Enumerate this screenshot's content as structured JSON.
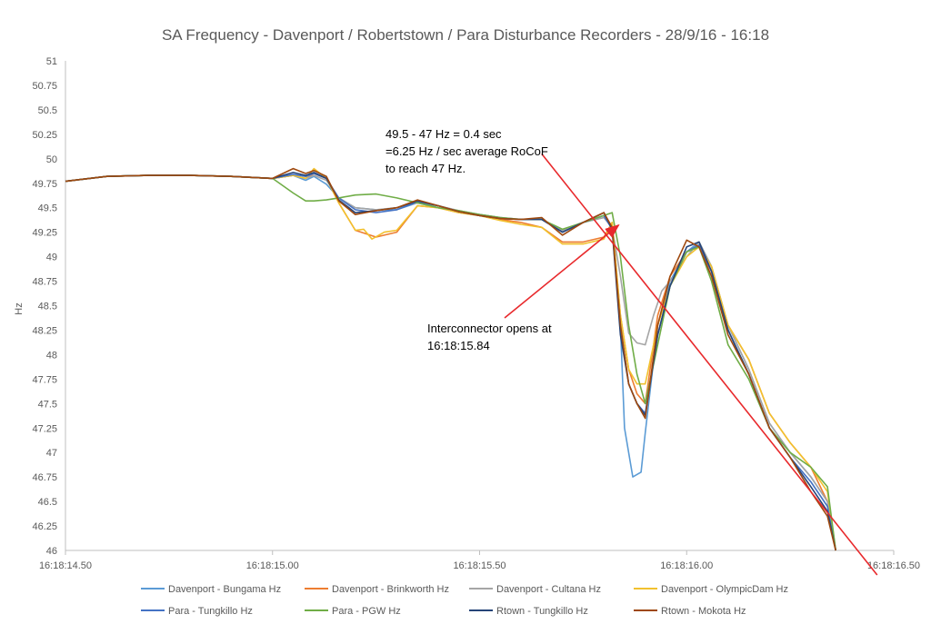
{
  "chart_data": {
    "type": "line",
    "title": "SA Frequency - Davenport / Robertstown  / Para Disturbance Recorders - 28/9/16 - 16:18",
    "xlabel": "",
    "ylabel": "Hz",
    "xlim": [
      14.5,
      16.5
    ],
    "ylim": [
      46,
      51
    ],
    "x_ticks": [
      14.5,
      15.0,
      15.5,
      16.0,
      16.5
    ],
    "x_tick_labels": [
      "16:18:14.50",
      "16:18:15.00",
      "16:18:15.50",
      "16:18:16.00",
      "16:18:16.50"
    ],
    "y_ticks": [
      46,
      46.25,
      46.5,
      46.75,
      47,
      47.25,
      47.5,
      47.75,
      48,
      48.25,
      48.5,
      48.75,
      49,
      49.25,
      49.5,
      49.75,
      50,
      50.25,
      50.5,
      50.75,
      51
    ],
    "y_tick_labels": [
      "46",
      "46.25",
      "46.5",
      "46.75",
      "47",
      "47.25",
      "47.5",
      "47.75",
      "48",
      "48.25",
      "48.5",
      "48.75",
      "49",
      "49.25",
      "49.5",
      "49.75",
      "50",
      "50.25",
      "50.5",
      "50.75",
      "51"
    ],
    "grid": false,
    "legend_position": "bottom",
    "series": [
      {
        "name": "Davenport - Bungama Hz",
        "color": "#5B9BD5",
        "x": [
          14.5,
          14.6,
          14.7,
          14.8,
          14.9,
          15.0,
          15.05,
          15.08,
          15.1,
          15.13,
          15.16,
          15.2,
          15.25,
          15.3,
          15.35,
          15.4,
          15.45,
          15.5,
          15.55,
          15.6,
          15.65,
          15.7,
          15.75,
          15.8,
          15.82,
          15.84,
          15.85,
          15.87,
          15.89,
          15.9,
          15.93,
          15.96,
          16.0,
          16.03,
          16.06,
          16.1,
          16.15,
          16.2,
          16.25,
          16.3,
          16.34,
          16.36
        ],
        "y": [
          49.77,
          49.82,
          49.83,
          49.83,
          49.82,
          49.8,
          49.83,
          49.78,
          49.82,
          49.74,
          49.6,
          49.5,
          49.48,
          49.48,
          49.55,
          49.5,
          49.46,
          49.43,
          49.4,
          49.38,
          49.38,
          49.27,
          49.35,
          49.4,
          49.3,
          48.3,
          47.25,
          46.75,
          46.8,
          47.2,
          48.3,
          48.75,
          49.05,
          49.15,
          48.9,
          48.3,
          47.85,
          47.3,
          47.0,
          46.75,
          46.5,
          46.0
        ]
      },
      {
        "name": "Davenport - Brinkworth Hz",
        "color": "#ED7D31",
        "x": [
          14.5,
          14.6,
          14.7,
          14.8,
          14.9,
          15.0,
          15.05,
          15.08,
          15.1,
          15.13,
          15.16,
          15.2,
          15.25,
          15.3,
          15.35,
          15.4,
          15.45,
          15.5,
          15.55,
          15.6,
          15.65,
          15.7,
          15.75,
          15.8,
          15.82,
          15.84,
          15.86,
          15.88,
          15.9,
          15.93,
          15.96,
          16.0,
          16.03,
          16.06,
          16.1,
          16.15,
          16.2,
          16.25,
          16.3,
          16.34,
          16.36
        ],
        "y": [
          49.77,
          49.82,
          49.83,
          49.83,
          49.82,
          49.8,
          49.83,
          49.8,
          49.85,
          49.8,
          49.55,
          49.27,
          49.2,
          49.25,
          49.52,
          49.5,
          49.45,
          49.42,
          49.38,
          49.35,
          49.3,
          49.15,
          49.15,
          49.2,
          49.35,
          48.4,
          47.85,
          47.6,
          47.5,
          48.4,
          48.8,
          49.05,
          49.1,
          48.85,
          48.3,
          47.95,
          47.4,
          47.1,
          46.85,
          46.5,
          46.0
        ]
      },
      {
        "name": "Davenport - Cultana Hz",
        "color": "#A5A5A5",
        "x": [
          14.5,
          14.6,
          14.7,
          14.8,
          14.9,
          15.0,
          15.05,
          15.08,
          15.1,
          15.13,
          15.16,
          15.2,
          15.25,
          15.3,
          15.35,
          15.4,
          15.45,
          15.5,
          15.55,
          15.6,
          15.65,
          15.7,
          15.75,
          15.8,
          15.82,
          15.84,
          15.86,
          15.88,
          15.9,
          15.92,
          15.94,
          15.97,
          16.0,
          16.03,
          16.06,
          16.1,
          16.15,
          16.2,
          16.25,
          16.3,
          16.34,
          16.36
        ],
        "y": [
          49.77,
          49.82,
          49.83,
          49.83,
          49.82,
          49.8,
          49.83,
          49.8,
          49.83,
          49.78,
          49.6,
          49.5,
          49.48,
          49.5,
          49.55,
          49.52,
          49.47,
          49.43,
          49.4,
          49.38,
          49.38,
          49.27,
          49.35,
          49.4,
          49.3,
          48.8,
          48.22,
          48.12,
          48.1,
          48.4,
          48.65,
          48.8,
          49.0,
          49.15,
          48.9,
          48.3,
          47.85,
          47.3,
          47.0,
          46.75,
          46.5,
          46.0
        ]
      },
      {
        "name": "Davenport - OlympicDam Hz",
        "color": "#F2C12E",
        "x": [
          14.5,
          14.6,
          14.7,
          14.8,
          14.9,
          15.0,
          15.05,
          15.08,
          15.1,
          15.13,
          15.16,
          15.2,
          15.22,
          15.24,
          15.27,
          15.3,
          15.35,
          15.4,
          15.45,
          15.5,
          15.55,
          15.6,
          15.65,
          15.7,
          15.75,
          15.8,
          15.82,
          15.84,
          15.86,
          15.88,
          15.9,
          15.93,
          15.96,
          16.0,
          16.03,
          16.06,
          16.1,
          16.15,
          16.2,
          16.25,
          16.3,
          16.34,
          16.36
        ],
        "y": [
          49.77,
          49.82,
          49.83,
          49.83,
          49.82,
          49.8,
          49.83,
          49.8,
          49.9,
          49.8,
          49.55,
          49.27,
          49.28,
          49.18,
          49.25,
          49.27,
          49.52,
          49.5,
          49.45,
          49.42,
          49.37,
          49.33,
          49.3,
          49.13,
          49.13,
          49.18,
          49.35,
          48.4,
          47.85,
          47.7,
          47.7,
          48.3,
          48.7,
          49.0,
          49.1,
          48.9,
          48.3,
          47.95,
          47.4,
          47.1,
          46.85,
          46.6,
          46.0
        ]
      },
      {
        "name": "Para - Tungkillo Hz",
        "color": "#4472C4",
        "x": [
          14.5,
          14.6,
          14.7,
          14.8,
          14.9,
          15.0,
          15.05,
          15.08,
          15.1,
          15.13,
          15.16,
          15.2,
          15.25,
          15.3,
          15.35,
          15.4,
          15.45,
          15.5,
          15.55,
          15.6,
          15.65,
          15.7,
          15.75,
          15.8,
          15.82,
          15.84,
          15.86,
          15.88,
          15.9,
          15.93,
          15.96,
          16.0,
          16.03,
          16.06,
          16.1,
          16.15,
          16.2,
          16.25,
          16.3,
          16.34,
          16.36
        ],
        "y": [
          49.77,
          49.82,
          49.83,
          49.83,
          49.82,
          49.8,
          49.84,
          49.82,
          49.85,
          49.8,
          49.6,
          49.48,
          49.45,
          49.48,
          49.56,
          49.52,
          49.46,
          49.42,
          49.39,
          49.38,
          49.38,
          49.25,
          49.35,
          49.42,
          49.28,
          48.3,
          47.7,
          47.5,
          47.4,
          48.2,
          48.7,
          49.05,
          49.12,
          48.85,
          48.25,
          47.8,
          47.25,
          46.95,
          46.7,
          46.45,
          46.0
        ]
      },
      {
        "name": "Para - PGW Hz",
        "color": "#70AD47",
        "x": [
          14.5,
          14.6,
          14.7,
          14.8,
          14.9,
          15.0,
          15.05,
          15.08,
          15.1,
          15.13,
          15.16,
          15.2,
          15.25,
          15.3,
          15.35,
          15.4,
          15.45,
          15.5,
          15.55,
          15.6,
          15.65,
          15.7,
          15.75,
          15.8,
          15.82,
          15.84,
          15.86,
          15.88,
          15.9,
          15.93,
          15.96,
          16.0,
          16.03,
          16.06,
          16.1,
          16.15,
          16.2,
          16.25,
          16.3,
          16.34,
          16.36
        ],
        "y": [
          49.77,
          49.82,
          49.83,
          49.83,
          49.82,
          49.8,
          49.65,
          49.57,
          49.57,
          49.58,
          49.6,
          49.63,
          49.64,
          49.6,
          49.55,
          49.5,
          49.47,
          49.43,
          49.4,
          49.38,
          49.38,
          49.28,
          49.35,
          49.42,
          49.45,
          49.0,
          48.3,
          47.8,
          47.5,
          48.1,
          48.7,
          49.05,
          49.1,
          48.75,
          48.1,
          47.75,
          47.25,
          47.0,
          46.85,
          46.65,
          46.0
        ]
      },
      {
        "name": "Rtown - Tungkillo Hz",
        "color": "#264478",
        "x": [
          14.5,
          14.6,
          14.7,
          14.8,
          14.9,
          15.0,
          15.05,
          15.08,
          15.1,
          15.13,
          15.16,
          15.2,
          15.25,
          15.3,
          15.35,
          15.4,
          15.45,
          15.5,
          15.55,
          15.6,
          15.65,
          15.7,
          15.75,
          15.8,
          15.82,
          15.84,
          15.86,
          15.88,
          15.9,
          15.93,
          15.96,
          16.0,
          16.03,
          16.06,
          16.1,
          16.15,
          16.2,
          16.25,
          16.3,
          16.34,
          16.36
        ],
        "y": [
          49.77,
          49.82,
          49.83,
          49.83,
          49.82,
          49.8,
          49.86,
          49.83,
          49.86,
          49.8,
          49.58,
          49.45,
          49.47,
          49.5,
          49.57,
          49.52,
          49.46,
          49.42,
          49.39,
          49.38,
          49.38,
          49.25,
          49.35,
          49.45,
          49.28,
          48.2,
          47.7,
          47.5,
          47.38,
          48.2,
          48.7,
          49.1,
          49.15,
          48.85,
          48.25,
          47.8,
          47.25,
          46.95,
          46.65,
          46.4,
          46.0
        ]
      },
      {
        "name": "Rtown - Mokota Hz",
        "color": "#9E480E",
        "x": [
          14.5,
          14.6,
          14.7,
          14.8,
          14.9,
          15.0,
          15.05,
          15.08,
          15.1,
          15.13,
          15.16,
          15.2,
          15.25,
          15.3,
          15.35,
          15.4,
          15.45,
          15.5,
          15.55,
          15.6,
          15.65,
          15.7,
          15.75,
          15.8,
          15.82,
          15.84,
          15.86,
          15.88,
          15.9,
          15.93,
          15.96,
          16.0,
          16.03,
          16.06,
          16.1,
          16.15,
          16.2,
          16.25,
          16.3,
          16.34,
          16.36
        ],
        "y": [
          49.77,
          49.82,
          49.83,
          49.83,
          49.82,
          49.8,
          49.9,
          49.85,
          49.88,
          49.82,
          49.57,
          49.43,
          49.47,
          49.5,
          49.58,
          49.52,
          49.46,
          49.42,
          49.39,
          49.38,
          49.4,
          49.22,
          49.35,
          49.45,
          49.3,
          48.3,
          47.7,
          47.5,
          47.35,
          48.3,
          48.8,
          49.17,
          49.1,
          48.8,
          48.2,
          47.8,
          47.25,
          46.95,
          46.6,
          46.35,
          46.0
        ]
      }
    ],
    "annotations": [
      {
        "lines": [
          "49.5 - 47 Hz = 0.4 sec",
          "=6.25 Hz / sec average RoCoF",
          "to reach 47 Hz."
        ]
      },
      {
        "lines": [
          "Interconnector opens at",
          "16:18:15.84"
        ]
      }
    ],
    "annotation_arrow": {
      "color": "#E8292C",
      "points_to": {
        "x": 15.84,
        "y": 49.35
      }
    },
    "trend_line": {
      "color": "#E8292C",
      "from": {
        "x": 15.65,
        "y": 50.05
      },
      "to": {
        "x": 16.46,
        "y": 45.75
      }
    }
  }
}
